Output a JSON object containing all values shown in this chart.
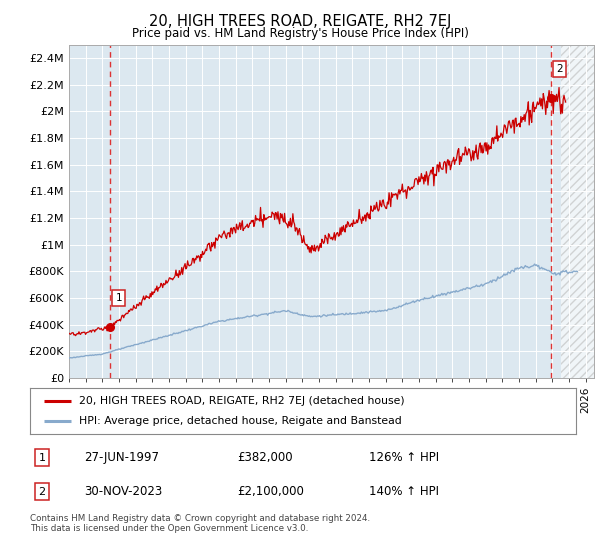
{
  "title": "20, HIGH TREES ROAD, REIGATE, RH2 7EJ",
  "subtitle": "Price paid vs. HM Land Registry's House Price Index (HPI)",
  "legend_label1": "20, HIGH TREES ROAD, REIGATE, RH2 7EJ (detached house)",
  "legend_label2": "HPI: Average price, detached house, Reigate and Banstead",
  "marker1_date": "27-JUN-1997",
  "marker1_price_str": "£382,000",
  "marker1_label": "126% ↑ HPI",
  "marker2_date": "30-NOV-2023",
  "marker2_price_str": "£2,100,000",
  "marker2_label": "140% ↑ HPI",
  "ylim": [
    0,
    2500000
  ],
  "yticks": [
    0,
    200000,
    400000,
    600000,
    800000,
    1000000,
    1200000,
    1400000,
    1600000,
    1800000,
    2000000,
    2200000,
    2400000
  ],
  "ytick_labels": [
    "£0",
    "£200K",
    "£400K",
    "£600K",
    "£800K",
    "£1M",
    "£1.2M",
    "£1.4M",
    "£1.6M",
    "£1.8M",
    "£2M",
    "£2.2M",
    "£2.4M"
  ],
  "xlim_start": 1995.0,
  "xlim_end": 2026.5,
  "marker1_x": 1997.48,
  "marker1_y": 382000,
  "marker2_x": 2023.92,
  "marker2_y": 2100000,
  "price_color": "#cc0000",
  "hpi_color": "#88aacc",
  "plot_bg": "#dce8f0",
  "grid_color": "#ffffff",
  "dashed_color": "#dd3333",
  "footnote": "Contains HM Land Registry data © Crown copyright and database right 2024.\nThis data is licensed under the Open Government Licence v3.0."
}
